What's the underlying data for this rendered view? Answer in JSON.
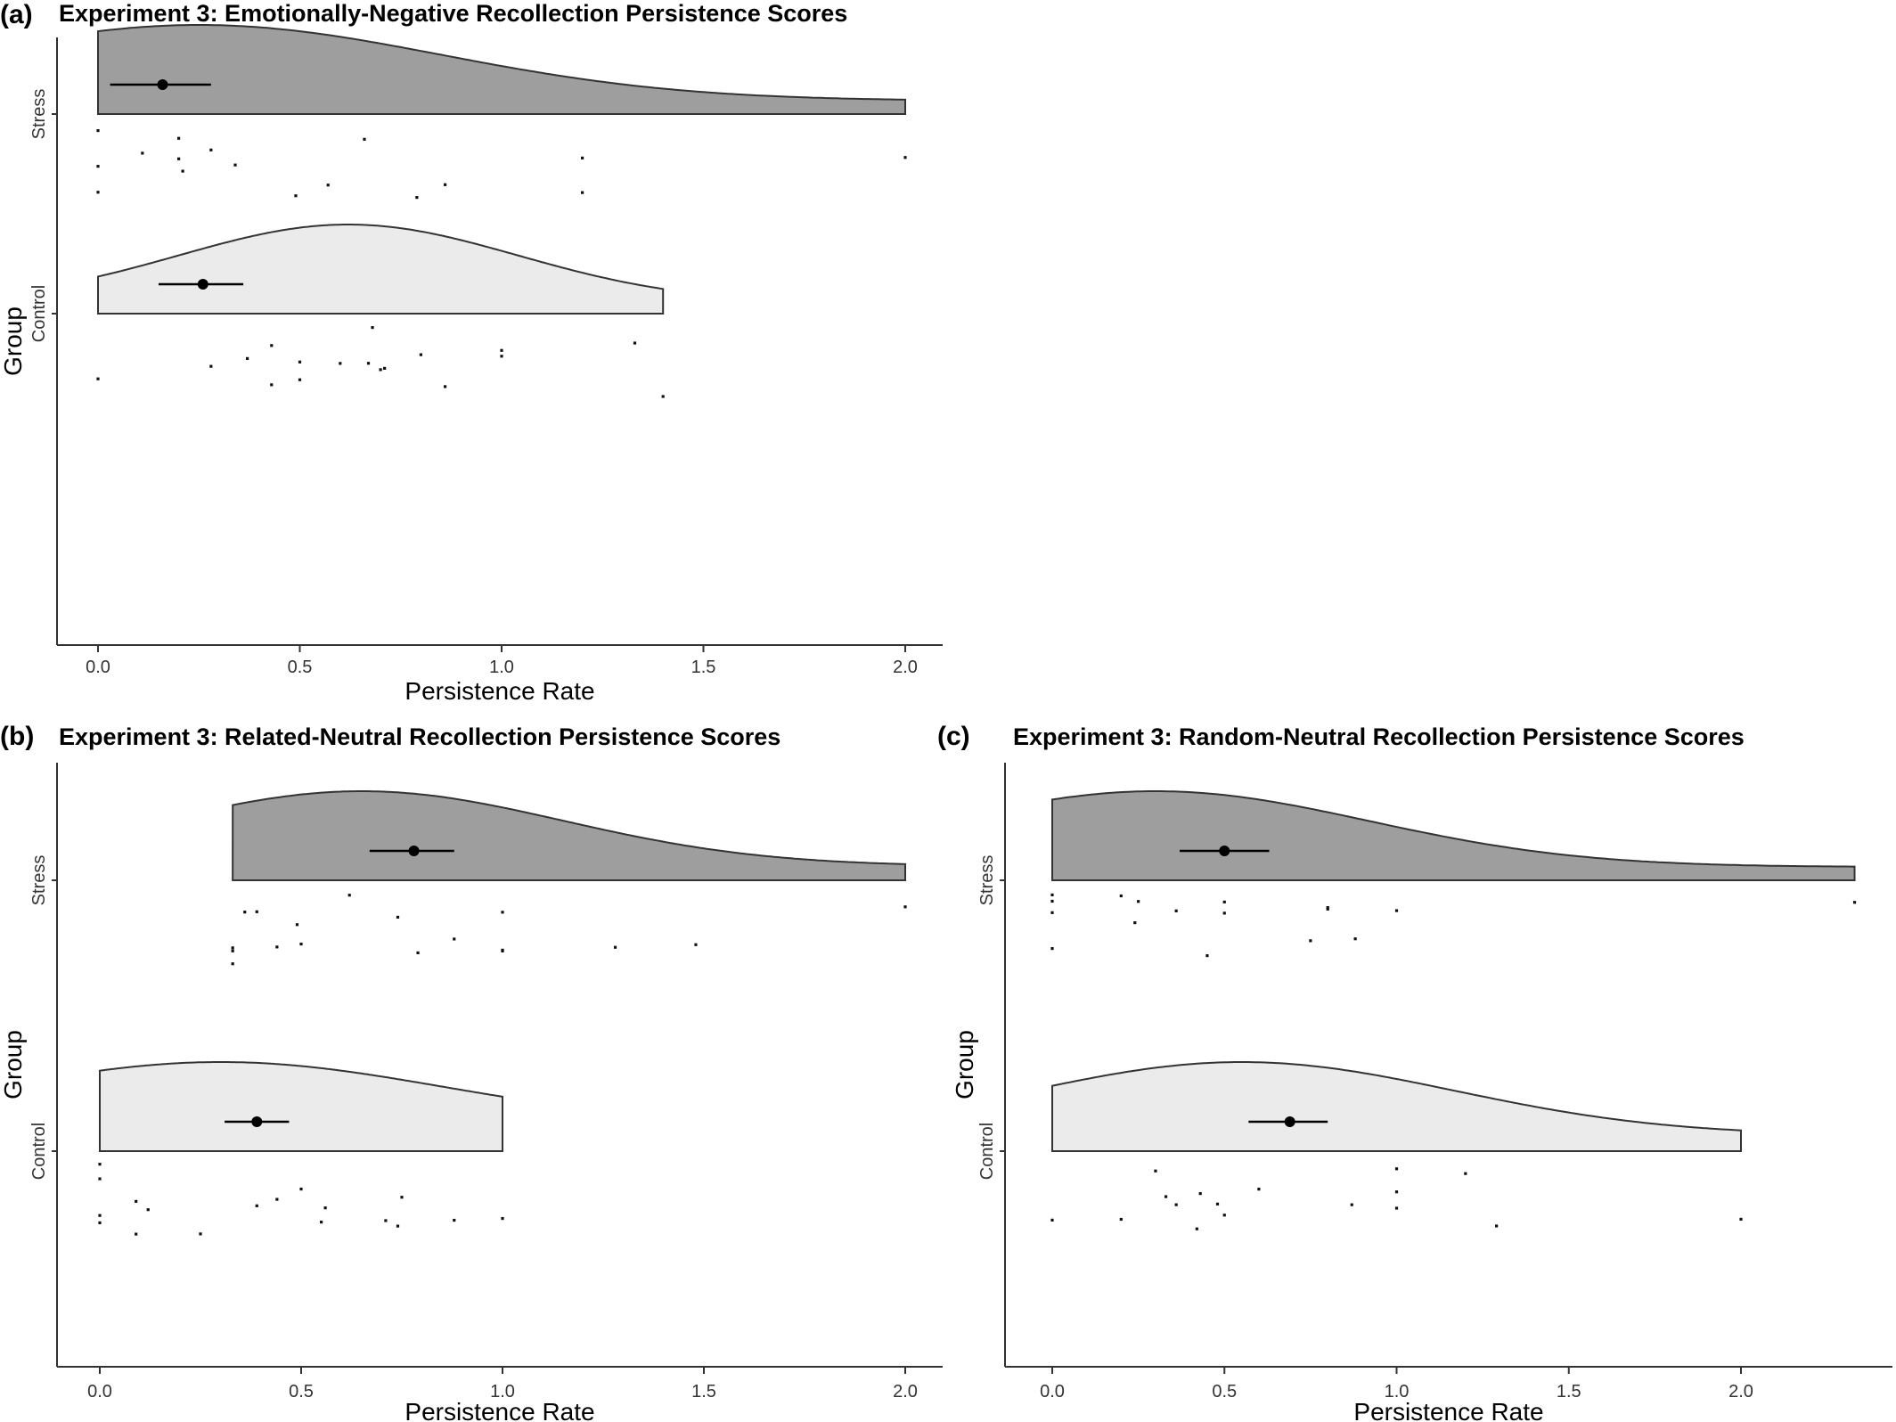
{
  "panels": [
    {
      "label": "(a)",
      "chart_data": {
        "type": "raincloud",
        "title": "Experiment 3: Emotionally-Negative Recollection Persistence Scores",
        "xlabel": "Persistence Rate",
        "ylabel": "Group",
        "xlim": [
          -0.1,
          2.1
        ],
        "xticks": [
          "0.0",
          "0.5",
          "1.0",
          "1.5",
          "2.0"
        ],
        "xtick_values": [
          0,
          0.5,
          1.0,
          1.5,
          2.0
        ],
        "grid": false,
        "groups": [
          {
            "name": "Stress",
            "fill": "#9e9e9e",
            "density_range": [
              0,
              2.0
            ],
            "density_peak": 0.25,
            "density_sd": 0.6,
            "density_tail": 0.15,
            "mean": 0.16,
            "ci": [
              0.03,
              0.28
            ],
            "points": [
              0,
              0,
              0,
              0.11,
              0.2,
              0.21,
              0.2,
              0.28,
              0.34,
              0.49,
              0.57,
              0.66,
              0.79,
              0.86,
              1.2,
              1.2,
              2.0
            ]
          },
          {
            "name": "Control",
            "fill": "#ebebeb",
            "density_range": [
              0,
              1.4
            ],
            "density_peak": 0.62,
            "density_sd": 0.42,
            "density_tail": 0.12,
            "mean": 0.26,
            "ci": [
              0.15,
              0.36
            ],
            "points": [
              0,
              0.28,
              0.37,
              0.43,
              0.43,
              0.5,
              0.5,
              0.6,
              0.67,
              0.68,
              0.71,
              0.7,
              0.8,
              0.86,
              1.0,
              1.0,
              1.33,
              1.4
            ]
          }
        ]
      }
    },
    {
      "label": "(b)",
      "chart_data": {
        "type": "raincloud",
        "title": "Experiment 3: Related-Neutral Recollection Persistence Scores",
        "xlabel": "Persistence Rate",
        "ylabel": "Group",
        "xlim": [
          -0.1,
          2.1
        ],
        "xticks": [
          "0.0",
          "0.5",
          "1.0",
          "1.5",
          "2.0"
        ],
        "xtick_values": [
          0,
          0.5,
          1.0,
          1.5,
          2.0
        ],
        "grid": false,
        "groups": [
          {
            "name": "Stress",
            "fill": "#9e9e9e",
            "density_range": [
              0.33,
              2.0
            ],
            "density_peak": 0.65,
            "density_sd": 0.5,
            "density_tail": 0.16,
            "mean": 0.78,
            "ci": [
              0.67,
              0.88
            ],
            "points": [
              0.33,
              0.33,
              0.33,
              0.36,
              0.39,
              0.44,
              0.49,
              0.5,
              0.62,
              0.74,
              0.79,
              0.88,
              1.0,
              1.0,
              1.0,
              1.28,
              1.48,
              2.0
            ]
          },
          {
            "name": "Control",
            "fill": "#ebebeb",
            "density_range": [
              0,
              1.0
            ],
            "density_peak": 0.3,
            "density_sd": 0.55,
            "density_tail": 0.3,
            "mean": 0.39,
            "ci": [
              0.31,
              0.47
            ],
            "points": [
              0,
              0,
              0,
              0,
              0.09,
              0.09,
              0.12,
              0.25,
              0.39,
              0.44,
              0.5,
              0.55,
              0.56,
              0.71,
              0.74,
              0.75,
              0.88,
              1.0
            ]
          }
        ]
      }
    },
    {
      "label": "(c)",
      "chart_data": {
        "type": "raincloud",
        "title": "Experiment 3: Random-Neutral Recollection Persistence Scores",
        "xlabel": "Persistence Rate",
        "ylabel": "Group",
        "xlim": [
          -0.1,
          2.45
        ],
        "xticks": [
          "0.0",
          "0.5",
          "1.0",
          "1.5",
          "2.0"
        ],
        "xtick_values": [
          0,
          0.5,
          1.0,
          1.5,
          2.0
        ],
        "grid": false,
        "groups": [
          {
            "name": "Stress",
            "fill": "#9e9e9e",
            "density_range": [
              0,
              2.33
            ],
            "density_peak": 0.3,
            "density_sd": 0.62,
            "density_tail": 0.15,
            "mean": 0.5,
            "ci": [
              0.37,
              0.63
            ],
            "points": [
              0,
              0,
              0,
              0,
              0.2,
              0.25,
              0.24,
              0.36,
              0.45,
              0.5,
              0.5,
              0.75,
              0.8,
              0.8,
              0.88,
              1.0,
              2.33
            ]
          },
          {
            "name": "Control",
            "fill": "#ebebeb",
            "density_range": [
              0,
              2.0
            ],
            "density_peak": 0.55,
            "density_sd": 0.62,
            "density_tail": 0.18,
            "mean": 0.69,
            "ci": [
              0.57,
              0.8
            ],
            "points": [
              0,
              0.2,
              0.3,
              0.33,
              0.36,
              0.42,
              0.43,
              0.48,
              0.5,
              0.6,
              0.87,
              1.0,
              1.0,
              1.0,
              1.2,
              1.29,
              2.0
            ]
          }
        ]
      }
    }
  ]
}
